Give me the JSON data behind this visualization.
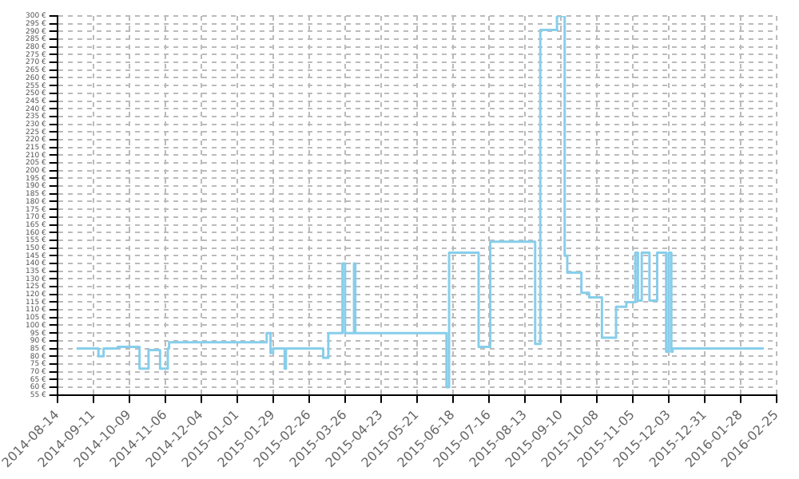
{
  "chart_data": {
    "type": "step",
    "x": [
      "2014-08-29",
      "2014-09-15",
      "2014-09-19",
      "2014-09-30",
      "2014-10-17",
      "2014-10-24",
      "2014-11-02",
      "2014-11-08",
      "2014-11-09",
      "2015-01-24",
      "2015-01-27",
      "2015-01-29",
      "2015-02-07",
      "2015-02-08",
      "2015-03-09",
      "2015-03-13",
      "2015-03-24",
      "2015-03-26",
      "2015-04-02",
      "2015-04-03",
      "2015-06-13",
      "2015-06-15",
      "2015-07-08",
      "2015-07-17",
      "2015-08-21",
      "2015-08-25",
      "2015-09-07",
      "2015-09-13",
      "2015-09-15",
      "2015-09-26",
      "2015-10-02",
      "2015-10-12",
      "2015-10-23",
      "2015-10-31",
      "2015-11-07",
      "2015-11-09",
      "2015-11-12",
      "2015-11-18",
      "2015-11-24",
      "2015-12-01",
      "2015-12-03",
      "2015-12-05",
      "2015-12-06",
      "2015-12-18",
      "2016-02-15"
    ],
    "series": [
      {
        "color": "#87ceeb",
        "values": [
          85,
          80,
          85,
          86,
          72,
          84,
          72,
          85,
          89,
          95,
          82,
          85,
          72,
          85,
          79,
          95,
          140,
          95,
          140,
          95,
          60,
          147,
          86,
          154,
          88,
          291,
          300,
          145,
          134,
          121,
          118,
          92,
          112,
          115,
          147,
          116,
          147,
          116,
          147,
          83,
          147,
          83,
          85,
          85,
          85
        ]
      }
    ],
    "xlim": [
      "2014-08-14",
      "2016-02-25"
    ],
    "xticks": [
      "2014-08-14",
      "2014-09-11",
      "2014-10-09",
      "2014-11-06",
      "2014-12-04",
      "2015-01-01",
      "2015-01-29",
      "2015-02-26",
      "2015-03-26",
      "2015-04-23",
      "2015-05-21",
      "2015-06-18",
      "2015-07-16",
      "2015-08-13",
      "2015-09-10",
      "2015-10-08",
      "2015-11-05",
      "2015-12-03",
      "2015-12-31",
      "2016-01-28",
      "2016-02-25"
    ],
    "ylim": [
      55,
      300
    ],
    "yticks": [
      {
        "value": 55,
        "label": "55 €"
      },
      {
        "value": 60,
        "label": "60 €"
      },
      {
        "value": 65,
        "label": "65 €"
      },
      {
        "value": 70,
        "label": "70 €"
      },
      {
        "value": 75,
        "label": "75 €"
      },
      {
        "value": 80,
        "label": "80 €"
      },
      {
        "value": 85,
        "label": "85 €"
      },
      {
        "value": 90,
        "label": "90 €"
      },
      {
        "value": 95,
        "label": "95 €"
      },
      {
        "value": 100,
        "label": "100 €"
      },
      {
        "value": 105,
        "label": "105 €"
      },
      {
        "value": 110,
        "label": "110 €"
      },
      {
        "value": 115,
        "label": "115 €"
      },
      {
        "value": 120,
        "label": "120 €"
      },
      {
        "value": 125,
        "label": "125 €"
      },
      {
        "value": 130,
        "label": "130 €"
      },
      {
        "value": 135,
        "label": "135 €"
      },
      {
        "value": 140,
        "label": "140 €"
      },
      {
        "value": 145,
        "label": "145 €"
      },
      {
        "value": 150,
        "label": "150 €"
      },
      {
        "value": 155,
        "label": "155 €"
      },
      {
        "value": 160,
        "label": "160 €"
      },
      {
        "value": 165,
        "label": "165 €"
      },
      {
        "value": 170,
        "label": "170 €"
      },
      {
        "value": 175,
        "label": "175 €"
      },
      {
        "value": 180,
        "label": "180 €"
      },
      {
        "value": 185,
        "label": "185 €"
      },
      {
        "value": 190,
        "label": "190 €"
      },
      {
        "value": 195,
        "label": "195 €"
      },
      {
        "value": 200,
        "label": "200 €"
      },
      {
        "value": 205,
        "label": "205 €"
      },
      {
        "value": 210,
        "label": "210 €"
      },
      {
        "value": 215,
        "label": "215 €"
      },
      {
        "value": 220,
        "label": "220 €"
      },
      {
        "value": 225,
        "label": "225 €"
      },
      {
        "value": 230,
        "label": "230 €"
      },
      {
        "value": 235,
        "label": "235 €"
      },
      {
        "value": 240,
        "label": "240 €"
      },
      {
        "value": 245,
        "label": "245 €"
      },
      {
        "value": 250,
        "label": "250 €"
      },
      {
        "value": 255,
        "label": "255 €"
      },
      {
        "value": 260,
        "label": "260 €"
      },
      {
        "value": 265,
        "label": "265 €"
      },
      {
        "value": 270,
        "label": "270 €"
      },
      {
        "value": 275,
        "label": "275 €"
      },
      {
        "value": 280,
        "label": "280 €"
      },
      {
        "value": 285,
        "label": "285 €"
      },
      {
        "value": 290,
        "label": "290 €"
      },
      {
        "value": 295,
        "label": "295 €"
      },
      {
        "value": 300,
        "label": "300 €"
      }
    ],
    "grid": true,
    "legend": false
  }
}
